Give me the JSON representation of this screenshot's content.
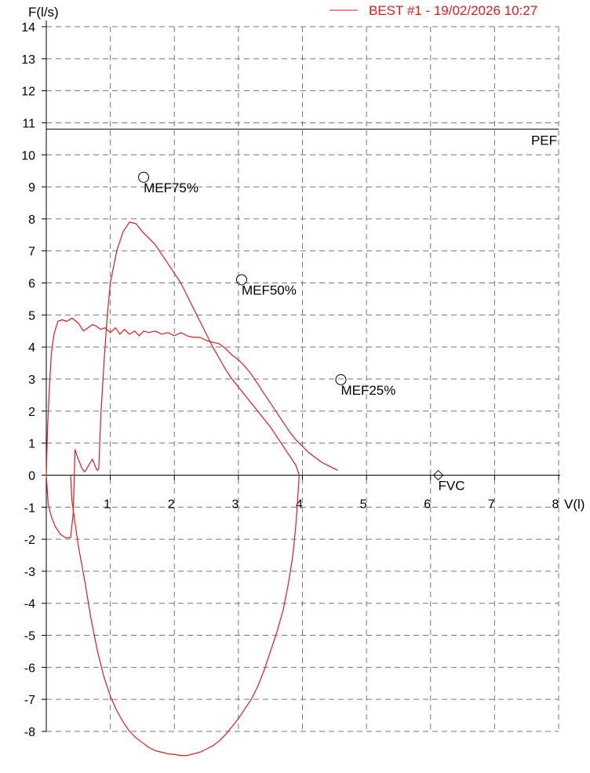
{
  "chart_data": {
    "type": "line",
    "title": "",
    "xlabel": "V(l)",
    "ylabel": "F(l/s)",
    "xlim": [
      0,
      8
    ],
    "ylim": [
      -8,
      14
    ],
    "grid": true,
    "legend_position": "top-right",
    "x_ticks": [
      "1",
      "2",
      "3",
      "4",
      "5",
      "6",
      "7",
      "8"
    ],
    "y_ticks": [
      "14",
      "13",
      "12",
      "11",
      "10",
      "9",
      "8",
      "7",
      "6",
      "5",
      "4",
      "3",
      "2",
      "1",
      "0",
      "-1",
      "-2",
      "-3",
      "-4",
      "-5",
      "-6",
      "-7",
      "-8"
    ],
    "reference_lines": [
      {
        "name": "PEF",
        "y": 10.8
      }
    ],
    "predicted_points": [
      {
        "name": "MEF75%",
        "x": 1.52,
        "y": 9.3,
        "marker": "circle"
      },
      {
        "name": "MEF50%",
        "x": 3.05,
        "y": 6.1,
        "marker": "circle"
      },
      {
        "name": "MEF25%",
        "x": 4.6,
        "y": 2.98,
        "marker": "circle"
      },
      {
        "name": "FVC",
        "x": 6.12,
        "y": 0,
        "marker": "diamond"
      }
    ],
    "series": [
      {
        "name": "BEST #1 - 19/02/2026  10:27",
        "color": "#e31a1c",
        "x": [
          0,
          0.02,
          0.05,
          0.08,
          0.12,
          0.18,
          0.25,
          0.32,
          0.4,
          0.5,
          0.58,
          0.65,
          0.72,
          0.78,
          0.85,
          0.92,
          1.0,
          1.08,
          1.15,
          1.22,
          1.3,
          1.38,
          1.45,
          1.52,
          1.6,
          1.7,
          1.8,
          1.9,
          2.0,
          2.1,
          2.2,
          2.3,
          2.4,
          2.5,
          2.6,
          2.7,
          2.8,
          2.9,
          3.0,
          3.1,
          3.2,
          3.3,
          3.4,
          3.5,
          3.6,
          3.7,
          3.8,
          3.9,
          4.0,
          4.1,
          4.2,
          4.3,
          4.4,
          4.5,
          4.55
        ],
        "y": [
          0,
          1.5,
          2.8,
          3.8,
          4.4,
          4.8,
          4.85,
          4.8,
          4.9,
          4.75,
          4.5,
          4.6,
          4.7,
          4.65,
          4.55,
          4.6,
          4.45,
          4.6,
          4.4,
          4.55,
          4.4,
          4.5,
          4.35,
          4.5,
          4.45,
          4.5,
          4.4,
          4.45,
          4.35,
          4.45,
          4.35,
          4.3,
          4.3,
          4.2,
          4.15,
          4.1,
          3.95,
          3.75,
          3.6,
          3.4,
          3.15,
          2.85,
          2.55,
          2.25,
          1.95,
          1.65,
          1.35,
          1.1,
          0.9,
          0.7,
          0.55,
          0.4,
          0.3,
          0.2,
          0.15
        ]
      },
      {
        "name": "",
        "color": "#e31a1c",
        "x": [
          0,
          0.03,
          0.08,
          0.14,
          0.22,
          0.3,
          0.38,
          0.42,
          0.45,
          0.48,
          0.52,
          0.56,
          0.6,
          0.66,
          0.72,
          0.78,
          0.8,
          0.82,
          0.85,
          0.9,
          0.95,
          1.0,
          1.1,
          1.2,
          1.3,
          1.4,
          1.5,
          1.6,
          1.7,
          1.8,
          1.9,
          2.0,
          2.1,
          2.2,
          2.3,
          2.4,
          2.5,
          2.6,
          2.7,
          2.8,
          2.9,
          3.0,
          3.1,
          3.2,
          3.3,
          3.4,
          3.5,
          3.6,
          3.7,
          3.8,
          3.9,
          3.95
        ],
        "y": [
          0,
          -0.9,
          -1.3,
          -1.6,
          -1.85,
          -1.95,
          -1.95,
          -1.2,
          0.8,
          0.6,
          0.4,
          0.2,
          0.1,
          0.3,
          0.5,
          0.2,
          0.15,
          0.2,
          1.8,
          3.5,
          4.9,
          6.0,
          7.0,
          7.6,
          7.9,
          7.85,
          7.6,
          7.4,
          7.2,
          6.9,
          6.6,
          6.3,
          6.0,
          5.6,
          5.2,
          4.8,
          4.4,
          4.0,
          3.65,
          3.3,
          3.0,
          2.75,
          2.5,
          2.25,
          2.0,
          1.75,
          1.5,
          1.2,
          0.9,
          0.6,
          0.3,
          0
        ]
      },
      {
        "name": "",
        "color": "#e31a1c",
        "x": [
          3.95,
          3.9,
          3.85,
          3.78,
          3.7,
          3.6,
          3.5,
          3.4,
          3.3,
          3.2,
          3.1,
          3.0,
          2.9,
          2.8,
          2.7,
          2.6,
          2.5,
          2.4,
          2.3,
          2.2,
          2.1,
          2.0,
          1.9,
          1.8,
          1.7,
          1.6,
          1.5,
          1.4,
          1.3,
          1.2,
          1.1,
          1.0,
          0.9,
          0.8,
          0.7,
          0.6,
          0.5,
          0.45,
          0.4,
          0.38
        ],
        "y": [
          0,
          -1.5,
          -2.5,
          -3.4,
          -4.2,
          -4.9,
          -5.5,
          -6.1,
          -6.6,
          -7.0,
          -7.3,
          -7.6,
          -7.85,
          -8.1,
          -8.3,
          -8.45,
          -8.55,
          -8.65,
          -8.7,
          -8.75,
          -8.75,
          -8.72,
          -8.7,
          -8.65,
          -8.6,
          -8.5,
          -8.35,
          -8.2,
          -8.0,
          -7.7,
          -7.35,
          -6.9,
          -6.3,
          -5.5,
          -4.5,
          -3.3,
          -2.2,
          -1.5,
          -0.8,
          0
        ]
      }
    ]
  }
}
